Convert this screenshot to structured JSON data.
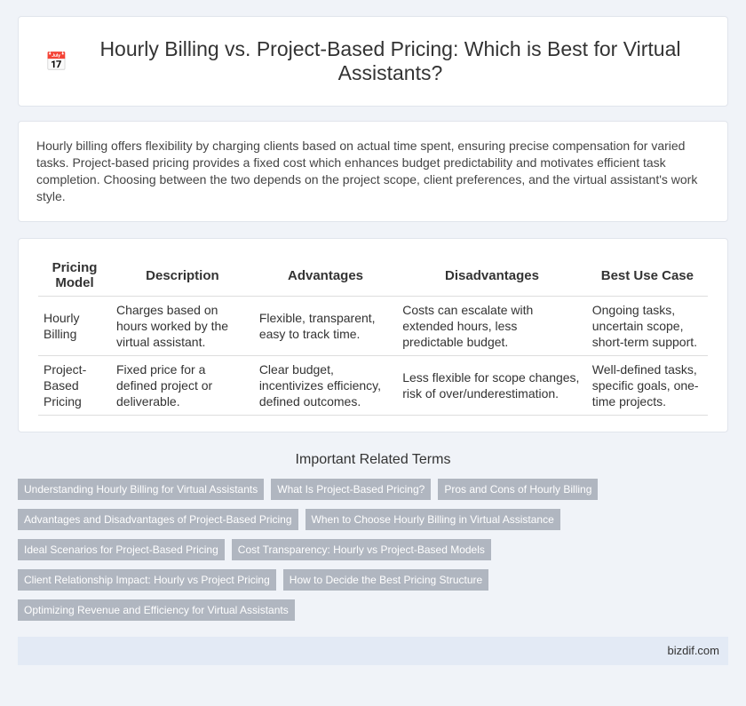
{
  "header": {
    "title": "Hourly Billing vs. Project-Based Pricing: Which is Best for Virtual Assistants?"
  },
  "intro": "Hourly billing offers flexibility by charging clients based on actual time spent, ensuring precise compensation for varied tasks. Project-based pricing provides a fixed cost which enhances budget predictability and motivates efficient task completion. Choosing between the two depends on the project scope, client preferences, and the virtual assistant's work style.",
  "table": {
    "headers": [
      "Pricing Model",
      "Description",
      "Advantages",
      "Disadvantages",
      "Best Use Case"
    ],
    "rows": [
      [
        "Hourly Billing",
        "Charges based on hours worked by the virtual assistant.",
        "Flexible, transparent, easy to track time.",
        "Costs can escalate with extended hours, less predictable budget.",
        "Ongoing tasks, uncertain scope, short-term support."
      ],
      [
        "Project-Based Pricing",
        "Fixed price for a defined project or deliverable.",
        "Clear budget, incentivizes efficiency, defined outcomes.",
        "Less flexible for scope changes, risk of over/underestimation.",
        "Well-defined tasks, specific goals, one-time projects."
      ]
    ]
  },
  "related": {
    "title": "Important Related Terms",
    "tags": [
      "Understanding Hourly Billing for Virtual Assistants",
      "What Is Project-Based Pricing?",
      "Pros and Cons of Hourly Billing",
      "Advantages and Disadvantages of Project-Based Pricing",
      "When to Choose Hourly Billing in Virtual Assistance",
      "Ideal Scenarios for Project-Based Pricing",
      "Cost Transparency: Hourly vs Project-Based Models",
      "Client Relationship Impact: Hourly vs Project Pricing",
      "How to Decide the Best Pricing Structure",
      "Optimizing Revenue and Efficiency for Virtual Assistants"
    ]
  },
  "footer": "bizdif.com"
}
